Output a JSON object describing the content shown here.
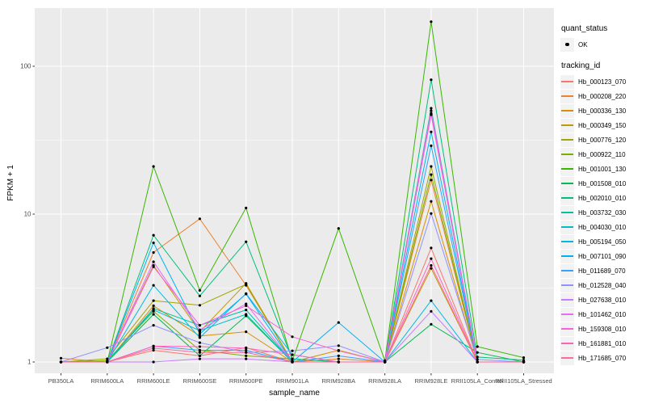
{
  "legend": {
    "quant_status_title": "quant_status",
    "quant_status_items": [
      {
        "label": "OK",
        "marker": "black-point"
      }
    ],
    "tracking_id_title": "tracking_id"
  },
  "chart_data": {
    "type": "line",
    "title": "",
    "xlabel": "sample_name",
    "ylabel": "FPKM + 1",
    "y_scale": "log10",
    "y_ticks": [
      1,
      10,
      100
    ],
    "y_minor_gridlines": [
      3.162,
      31.62
    ],
    "ylim": [
      0.93,
      260
    ],
    "grid": true,
    "panel_color": "#EBEBEB",
    "gridline_color": "#FFFFFF",
    "point_color": "#000000",
    "tick_label_color": "#4D4D4D",
    "legend_position": "right",
    "quant_status_of_all_points": "OK",
    "x_categories": [
      "PB350LA",
      "RRIM600LA",
      "RRIM600LE",
      "RRIM600SE",
      "RRIM600PE",
      "RRIM901LA",
      "RRIM928BA",
      "RRIM928LA",
      "RRIM928LE",
      "RRII105LA_Control",
      "RRII105LA_Stressed"
    ],
    "series": [
      {
        "name": "Hb_000123_070",
        "color": "#F8766D",
        "values": [
          1.0,
          1.0,
          1.2,
          1.1,
          1.25,
          1.0,
          1.0,
          1.0,
          5.9,
          1.0,
          1.0
        ]
      },
      {
        "name": "Hb_000208_220",
        "color": "#EA8331",
        "values": [
          1.06,
          1.0,
          5.5,
          9.3,
          3.3,
          1.0,
          1.05,
          1.0,
          17,
          1.0,
          1.0
        ]
      },
      {
        "name": "Hb_000336_130",
        "color": "#D89000",
        "values": [
          1.0,
          1.0,
          2.4,
          1.5,
          1.6,
          1.0,
          1.2,
          1.0,
          12.2,
          1.0,
          1.0
        ]
      },
      {
        "name": "Hb_000349_150",
        "color": "#C09B00",
        "values": [
          1.0,
          1.0,
          4.5,
          1.6,
          3.4,
          1.0,
          1.0,
          1.0,
          4.3,
          1.0,
          1.0
        ]
      },
      {
        "name": "Hb_000776_120",
        "color": "#A3A500",
        "values": [
          1.0,
          1.05,
          2.6,
          2.42,
          3.35,
          1.0,
          1.0,
          1.0,
          21,
          1.0,
          1.0
        ]
      },
      {
        "name": "Hb_000922_110",
        "color": "#7CAE00",
        "values": [
          1.0,
          1.02,
          2.2,
          1.2,
          1.1,
          1.05,
          1.0,
          1.0,
          18.5,
          1.0,
          1.0
        ]
      },
      {
        "name": "Hb_001001_130",
        "color": "#39B600",
        "values": [
          1.0,
          1.0,
          21,
          3.05,
          11,
          1.02,
          8.0,
          1.02,
          200,
          1.27,
          1.07
        ]
      },
      {
        "name": "Hb_001508_010",
        "color": "#00BB4E",
        "values": [
          1.0,
          1.0,
          2.1,
          1.1,
          2.05,
          1.0,
          1.0,
          1.0,
          1.8,
          1.16,
          1.0
        ]
      },
      {
        "name": "Hb_002010_010",
        "color": "#00BF7D",
        "values": [
          1.0,
          1.0,
          7.2,
          2.8,
          6.5,
          1.05,
          1.0,
          1.0,
          81,
          1.08,
          1.03
        ]
      },
      {
        "name": "Hb_003732_030",
        "color": "#00C1A3",
        "values": [
          1.0,
          1.0,
          2.3,
          1.77,
          2.25,
          1.0,
          1.0,
          1.0,
          52,
          1.0,
          1.0
        ]
      },
      {
        "name": "Hb_004030_010",
        "color": "#00BFC4",
        "values": [
          1.0,
          1.0,
          2.25,
          1.63,
          2.1,
          1.0,
          1.0,
          1.0,
          48,
          1.0,
          1.0
        ]
      },
      {
        "name": "Hb_005194_050",
        "color": "#00BAE0",
        "values": [
          1.0,
          1.0,
          3.3,
          1.46,
          2.9,
          1.12,
          1.0,
          1.0,
          2.6,
          1.0,
          1.0
        ]
      },
      {
        "name": "Hb_007101_090",
        "color": "#00B0F6",
        "values": [
          1.0,
          1.0,
          6.4,
          1.55,
          2.88,
          1.0,
          1.85,
          1.0,
          36,
          1.0,
          1.0
        ]
      },
      {
        "name": "Hb_011689_070",
        "color": "#35A2FF",
        "values": [
          1.0,
          1.0,
          1.28,
          1.2,
          1.2,
          1.0,
          1.1,
          1.0,
          29,
          1.0,
          1.0
        ]
      },
      {
        "name": "Hb_012528_040",
        "color": "#9590FF",
        "values": [
          1.0,
          1.25,
          1.77,
          1.35,
          1.16,
          1.19,
          1.29,
          1.0,
          10.1,
          1.04,
          1.0
        ]
      },
      {
        "name": "Hb_027638_010",
        "color": "#C77CFF",
        "values": [
          1.0,
          1.0,
          1.0,
          1.05,
          1.05,
          1.0,
          1.0,
          1.0,
          2.2,
          1.0,
          1.0
        ]
      },
      {
        "name": "Hb_101462_010",
        "color": "#E76BF3",
        "values": [
          1.0,
          1.0,
          4.76,
          1.65,
          2.47,
          1.0,
          1.0,
          1.0,
          50,
          1.0,
          1.0
        ]
      },
      {
        "name": "Hb_159308_010",
        "color": "#FA62DB",
        "values": [
          1.0,
          1.0,
          4.4,
          1.77,
          2.4,
          1.48,
          1.19,
          1.0,
          47,
          1.0,
          1.0
        ]
      },
      {
        "name": "Hb_161881_010",
        "color": "#FF62BC",
        "values": [
          1.0,
          1.0,
          1.28,
          1.27,
          1.24,
          1.12,
          1.0,
          1.0,
          5.0,
          1.0,
          1.0
        ]
      },
      {
        "name": "Hb_171685_070",
        "color": "#FF6A98",
        "values": [
          1.0,
          1.0,
          1.24,
          1.16,
          1.16,
          1.0,
          1.0,
          1.0,
          4.5,
          1.0,
          1.0
        ]
      }
    ]
  }
}
